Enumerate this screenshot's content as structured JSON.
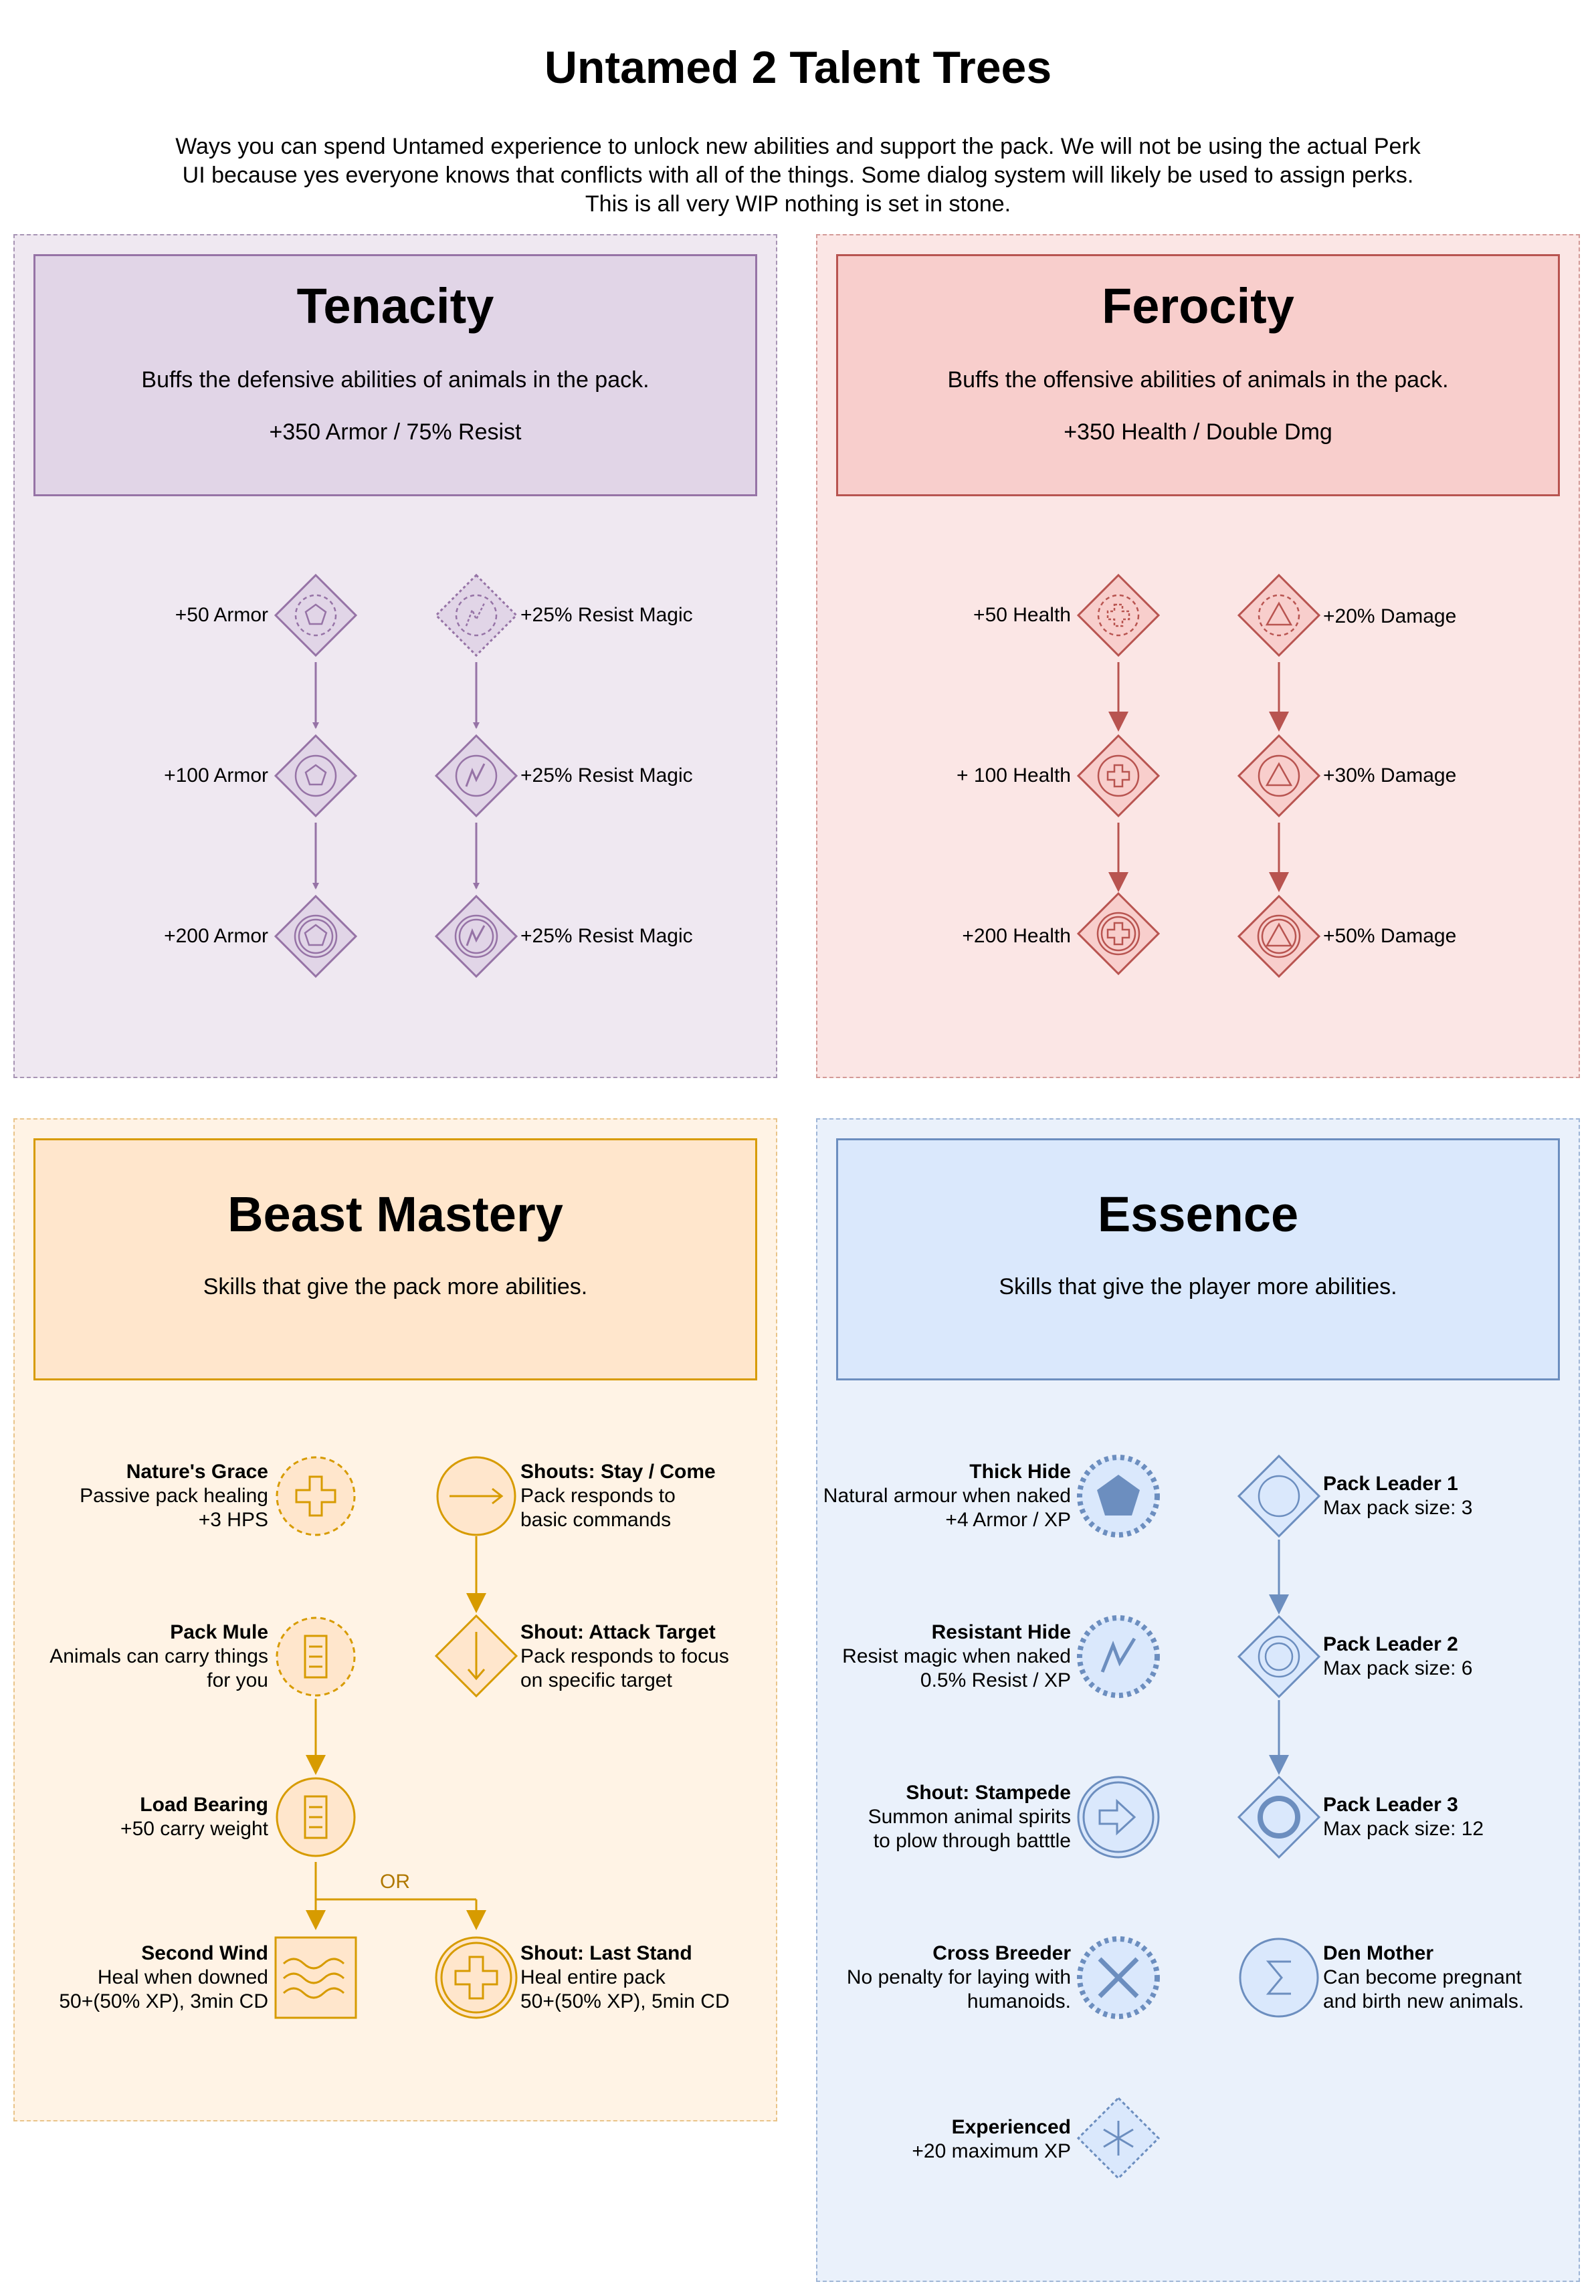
{
  "title": "Untamed 2 Talent Trees",
  "intro": [
    "Ways you can spend Untamed experience to unlock new abilities and support the pack. We will not be using the actual Perk",
    "UI because yes everyone knows that conflicts with all of the things. Some dialog system will likely be used to assign perks.",
    "This is all very WIP nothing is set in stone."
  ],
  "colors": {
    "tenacity": "#9673a6",
    "tenacity_fill": "#e1d5e7",
    "ferocity": "#b85450",
    "ferocity_fill": "#f8cecc",
    "beast": "#d79b00",
    "beast_fill": "#ffe6cc",
    "essence": "#6c8ebf",
    "essence_fill": "#dae8fc"
  },
  "tenacity": {
    "title": "Tenacity",
    "desc": "Buffs the defensive abilities of animals in the pack.",
    "bonus": "+350 Armor / 75% Resist",
    "nodes": [
      {
        "label": "+50 Armor",
        "icon": "pentagon-icon"
      },
      {
        "label": "+100 Armor",
        "icon": "pentagon-icon"
      },
      {
        "label": "+200 Armor",
        "icon": "pentagon-icon"
      },
      {
        "label": "+25% Resist Magic",
        "icon": "lightning-icon"
      },
      {
        "label": "+25% Resist Magic",
        "icon": "lightning-icon"
      },
      {
        "label": "+25% Resist Magic",
        "icon": "lightning-icon"
      }
    ]
  },
  "ferocity": {
    "title": "Ferocity",
    "desc": "Buffs the offensive abilities of animals in the pack.",
    "bonus": "+350 Health / Double Dmg",
    "nodes": [
      {
        "label": "+50 Health",
        "icon": "cross-icon"
      },
      {
        "label": "+ 100 Health",
        "icon": "cross-icon"
      },
      {
        "label": "+200 Health",
        "icon": "cross-icon"
      },
      {
        "label": "+20% Damage",
        "icon": "triangle-icon"
      },
      {
        "label": "+30% Damage",
        "icon": "triangle-icon"
      },
      {
        "label": "+50% Damage",
        "icon": "triangle-icon"
      }
    ]
  },
  "beast": {
    "title": "Beast Mastery",
    "desc": "Skills that give the pack more abilities.",
    "or_label": "OR",
    "nodes": [
      {
        "name": "Nature's Grace",
        "lines": [
          "Passive pack healing",
          "+3 HPS"
        ],
        "icon": "cross-icon"
      },
      {
        "name": "Pack Mule",
        "lines": [
          "Animals can carry things",
          "for you"
        ],
        "icon": "list-icon"
      },
      {
        "name": "Load Bearing",
        "lines": [
          "+50 carry weight"
        ],
        "icon": "list-icon"
      },
      {
        "name": "Second Wind",
        "lines": [
          "Heal when downed",
          "50+(50% XP), 3min CD"
        ],
        "icon": "wind-icon"
      },
      {
        "name": "Shouts: Stay / Come",
        "lines": [
          "Pack responds to",
          "basic commands"
        ],
        "icon": "arrow-right-icon"
      },
      {
        "name": "Shout: Attack Target",
        "lines": [
          "Pack responds to focus",
          "on specific target"
        ],
        "icon": "arrow-down-icon"
      },
      {
        "name": "Shout: Last Stand",
        "lines": [
          "Heal entire pack",
          "50+(50% XP), 5min CD"
        ],
        "icon": "cross-icon"
      }
    ]
  },
  "essence": {
    "title": "Essence",
    "desc": "Skills that give the player more abilities.",
    "nodes": [
      {
        "name": "Thick Hide",
        "lines": [
          "Natural armour when naked",
          "+4 Armor / XP"
        ],
        "icon": "pentagon-icon"
      },
      {
        "name": "Resistant Hide",
        "lines": [
          "Resist magic when naked",
          "0.5% Resist / XP"
        ],
        "icon": "lightning-icon"
      },
      {
        "name": "Shout: Stampede",
        "lines": [
          "Summon animal spirits",
          "to plow through batttle"
        ],
        "icon": "arrow-right-icon"
      },
      {
        "name": "Cross Breeder",
        "lines": [
          "No penalty for laying with",
          "humanoids."
        ],
        "icon": "x-icon"
      },
      {
        "name": "Experienced",
        "lines": [
          "+20 maximum XP"
        ],
        "icon": "snowflake-icon"
      },
      {
        "name": "Pack Leader 1",
        "lines": [
          "Max pack size: 3"
        ],
        "icon": "circle-icon"
      },
      {
        "name": "Pack Leader 2",
        "lines": [
          "Max pack size: 6"
        ],
        "icon": "circle-icon"
      },
      {
        "name": "Pack Leader 3",
        "lines": [
          "Max pack size: 12"
        ],
        "icon": "circle-icon"
      },
      {
        "name": "Den Mother",
        "lines": [
          "Can become pregnant",
          "and birth new animals."
        ],
        "icon": "sigma-icon"
      }
    ]
  }
}
